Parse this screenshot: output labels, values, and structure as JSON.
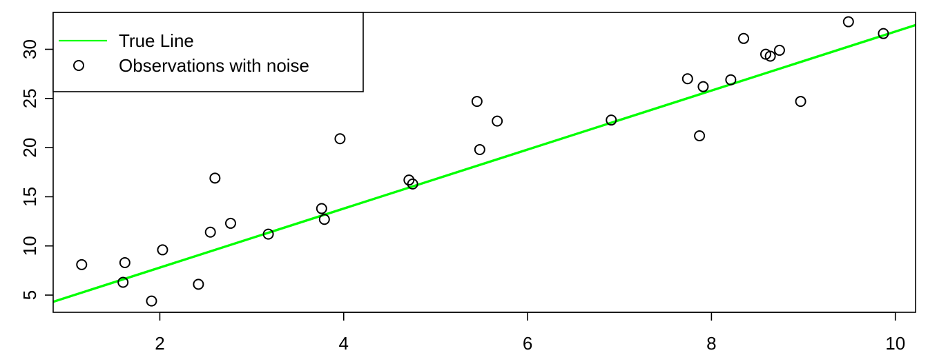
{
  "chart_data": {
    "type": "scatter",
    "title": "",
    "xlabel": "",
    "ylabel": "",
    "xlim": [
      0.84,
      10.22
    ],
    "ylim": [
      3.25,
      33.75
    ],
    "x_ticks": [
      2,
      4,
      6,
      8,
      10
    ],
    "y_ticks": [
      5,
      10,
      15,
      20,
      25,
      30
    ],
    "legend": {
      "position": "top-left",
      "entries": [
        {
          "label": "True Line",
          "kind": "line",
          "color": "#00ff00"
        },
        {
          "label": "Observations with noise",
          "kind": "point",
          "color": "#000000"
        }
      ]
    },
    "true_line": {
      "intercept": 1.8,
      "slope": 3.0,
      "color": "#00ff00"
    },
    "points": [
      {
        "x": 1.15,
        "y": 8.1
      },
      {
        "x": 1.6,
        "y": 6.3
      },
      {
        "x": 1.62,
        "y": 8.3
      },
      {
        "x": 1.91,
        "y": 4.4
      },
      {
        "x": 2.03,
        "y": 9.6
      },
      {
        "x": 2.42,
        "y": 6.1
      },
      {
        "x": 2.55,
        "y": 11.4
      },
      {
        "x": 2.6,
        "y": 16.9
      },
      {
        "x": 2.77,
        "y": 12.3
      },
      {
        "x": 3.18,
        "y": 11.2
      },
      {
        "x": 3.76,
        "y": 13.8
      },
      {
        "x": 3.79,
        "y": 12.7
      },
      {
        "x": 3.96,
        "y": 20.9
      },
      {
        "x": 4.71,
        "y": 16.7
      },
      {
        "x": 4.75,
        "y": 16.3
      },
      {
        "x": 5.45,
        "y": 24.7
      },
      {
        "x": 5.48,
        "y": 19.8
      },
      {
        "x": 5.67,
        "y": 22.7
      },
      {
        "x": 6.91,
        "y": 22.8
      },
      {
        "x": 7.74,
        "y": 27.0
      },
      {
        "x": 7.87,
        "y": 21.2
      },
      {
        "x": 7.91,
        "y": 26.2
      },
      {
        "x": 8.21,
        "y": 26.9
      },
      {
        "x": 8.35,
        "y": 31.1
      },
      {
        "x": 8.59,
        "y": 29.5
      },
      {
        "x": 8.64,
        "y": 29.3
      },
      {
        "x": 8.74,
        "y": 29.9
      },
      {
        "x": 8.97,
        "y": 24.7
      },
      {
        "x": 9.49,
        "y": 32.8
      },
      {
        "x": 9.87,
        "y": 31.6
      }
    ]
  }
}
